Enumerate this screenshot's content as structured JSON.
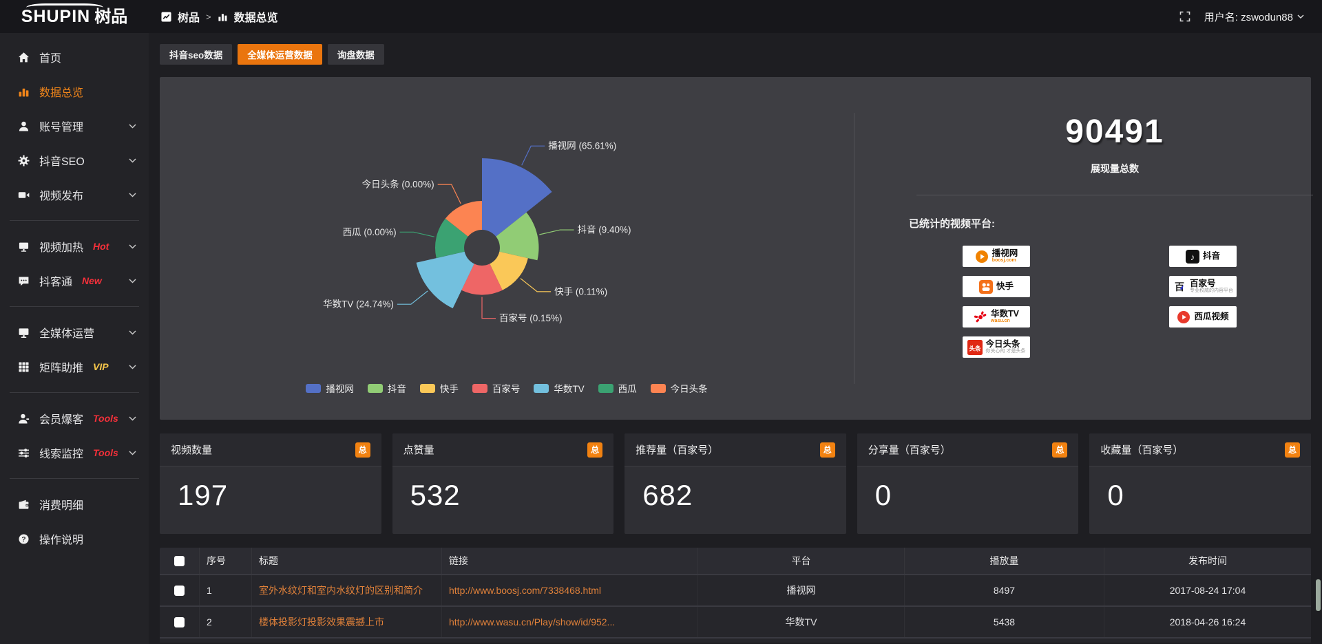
{
  "header": {
    "logo_main": "SHUPIN",
    "logo_cn": "树品",
    "breadcrumb": {
      "root": "树品",
      "sep": ">",
      "current": "数据总览"
    },
    "user_label": "用户名: zswodun88"
  },
  "sidebar": {
    "items": [
      {
        "id": "home",
        "icon": "home",
        "label": "首页"
      },
      {
        "id": "data-overview",
        "icon": "bar-chart",
        "label": "数据总览",
        "active": true
      },
      {
        "id": "account-manage",
        "icon": "user",
        "label": "账号管理",
        "chevron": true
      },
      {
        "id": "douyin-seo",
        "icon": "gear",
        "label": "抖音SEO",
        "chevron": true
      },
      {
        "id": "video-publish",
        "icon": "video",
        "label": "视频发布",
        "chevron": true
      },
      {
        "divider": true
      },
      {
        "id": "video-heat",
        "icon": "screen",
        "label": "视频加热",
        "tag": "Hot",
        "tag_color": "red",
        "chevron": true
      },
      {
        "id": "douketong",
        "icon": "comment",
        "label": "抖客通",
        "tag": "New",
        "tag_color": "red",
        "chevron": true
      },
      {
        "divider": true
      },
      {
        "id": "omnimedia-operation",
        "icon": "monitor",
        "label": "全媒体运营",
        "chevron": true
      },
      {
        "id": "matrix-boost",
        "icon": "grid",
        "label": "矩阵助推",
        "tag": "VIP",
        "tag_color": "gold",
        "chevron": true
      },
      {
        "divider": true
      },
      {
        "id": "member-baoke",
        "icon": "member",
        "label": "会员爆客",
        "tag": "Tools",
        "tag_color": "red",
        "chevron": true
      },
      {
        "id": "clue-monitor",
        "icon": "sliders",
        "label": "线索监控",
        "tag": "Tools",
        "tag_color": "red",
        "chevron": true
      },
      {
        "divider": true
      },
      {
        "id": "consume-detail",
        "icon": "wallet",
        "label": "消费明细"
      },
      {
        "id": "operation-guide",
        "icon": "question",
        "label": "操作说明"
      }
    ]
  },
  "tabs": [
    {
      "id": "douyin-seo-data",
      "label": "抖音seo数据",
      "active": false
    },
    {
      "id": "omnimedia-data",
      "label": "全媒体运营数据",
      "active": true
    },
    {
      "id": "inquiry-data",
      "label": "询盘数据",
      "active": false
    }
  ],
  "chart_data": {
    "type": "pie",
    "variant": "nightingale-rose",
    "categories": [
      "播视网",
      "抖音",
      "快手",
      "百家号",
      "华数TV",
      "西瓜",
      "今日头条"
    ],
    "values_percent": [
      65.61,
      9.4,
      0.11,
      0.15,
      24.74,
      0.0,
      0.0
    ],
    "colors": [
      "#5470c6",
      "#91cc75",
      "#fac858",
      "#ee6666",
      "#73c0de",
      "#3ba272",
      "#fc8452"
    ],
    "legend_position": "bottom",
    "label_format": "{name} ({value}%)"
  },
  "overview": {
    "total_value": "90491",
    "total_label": "展现量总数",
    "platforms_title": "已统计的视频平台:",
    "platforms": [
      {
        "id": "boosj",
        "name": "播视网",
        "sub": "boosj.com"
      },
      {
        "id": "douyin",
        "name": "抖音"
      },
      {
        "id": "kuaishou",
        "name": "快手"
      },
      {
        "id": "baijiahao",
        "name": "百家号",
        "sub": "专业权威的内容平台"
      },
      {
        "id": "wasu",
        "name": "华数TV",
        "sub": "wasu.cn"
      },
      {
        "id": "xigua",
        "name": "西瓜视频"
      },
      {
        "id": "toutiao",
        "name": "今日头条",
        "logo_text": "头条",
        "sub": "你关心的 才是头条"
      }
    ]
  },
  "cards": [
    {
      "title": "视频数量",
      "badge": "总",
      "value": "197"
    },
    {
      "title": "点赞量",
      "badge": "总",
      "value": "532"
    },
    {
      "title": "推荐量（百家号）",
      "badge": "总",
      "value": "682"
    },
    {
      "title": "分享量（百家号）",
      "badge": "总",
      "value": "0"
    },
    {
      "title": "收藏量（百家号）",
      "badge": "总",
      "value": "0"
    }
  ],
  "table": {
    "columns": [
      "序号",
      "标题",
      "链接",
      "平台",
      "播放量",
      "发布时间"
    ],
    "rows": [
      {
        "num": "1",
        "title": "室外水纹灯和室内水纹灯的区别和简介",
        "link": "http://www.boosj.com/7338468.html",
        "platform": "播视网",
        "plays": "8497",
        "time": "2017-08-24 17:04"
      },
      {
        "num": "2",
        "title": "楼体投影灯投影效果震撼上市",
        "link": "http://www.wasu.cn/Play/show/id/952...",
        "platform": "华数TV",
        "plays": "5438",
        "time": "2018-04-26 16:24"
      }
    ]
  }
}
